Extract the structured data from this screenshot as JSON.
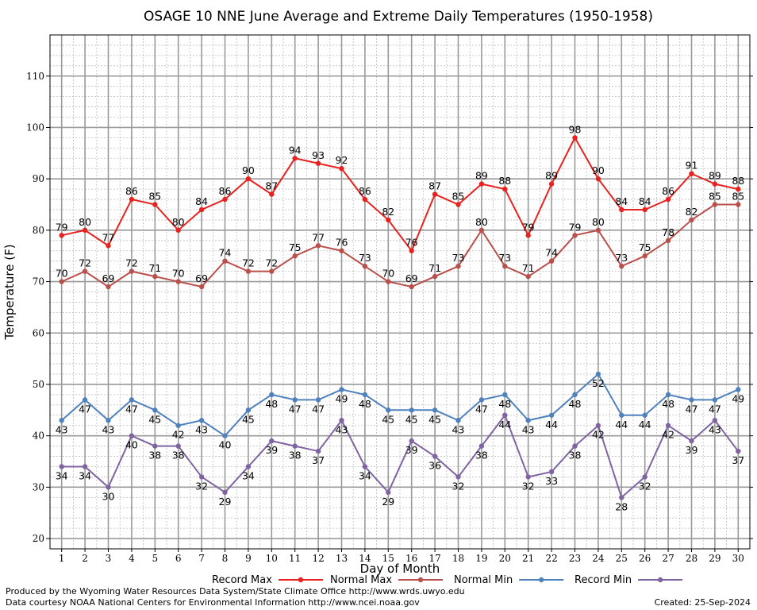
{
  "chart_data": {
    "type": "line",
    "title": "OSAGE 10 NNE June Average and Extreme Daily Temperatures (1950-1958)",
    "xlabel": "Day of Month",
    "ylabel": "Temperature (F)",
    "x": [
      1,
      2,
      3,
      4,
      5,
      6,
      7,
      8,
      9,
      10,
      11,
      12,
      13,
      14,
      15,
      16,
      17,
      18,
      19,
      20,
      21,
      22,
      23,
      24,
      25,
      26,
      27,
      28,
      29,
      30
    ],
    "ylim": [
      18,
      118
    ],
    "yticks": [
      20,
      30,
      40,
      50,
      60,
      70,
      80,
      90,
      100,
      110
    ],
    "grid": true,
    "legend_position": "bottom",
    "series": [
      {
        "name": "Record Max",
        "color": "#e8231f",
        "values": [
          79,
          80,
          77,
          86,
          85,
          80,
          84,
          86,
          90,
          87,
          94,
          93,
          92,
          86,
          82,
          76,
          87,
          85,
          89,
          88,
          79,
          89,
          98,
          90,
          84,
          84,
          86,
          91,
          89,
          88
        ]
      },
      {
        "name": "Normal Max",
        "color": "#b9504c",
        "values": [
          70,
          72,
          69,
          72,
          71,
          70,
          69,
          74,
          72,
          72,
          75,
          77,
          76,
          73,
          70,
          69,
          71,
          73,
          80,
          73,
          71,
          74,
          79,
          80,
          73,
          75,
          78,
          82,
          85,
          85
        ]
      },
      {
        "name": "Normal Min",
        "color": "#4f81bd",
        "values": [
          43,
          47,
          43,
          47,
          45,
          42,
          43,
          40,
          45,
          48,
          47,
          47,
          49,
          48,
          45,
          45,
          45,
          43,
          47,
          48,
          43,
          44,
          48,
          52,
          44,
          44,
          48,
          47,
          47,
          49
        ]
      },
      {
        "name": "Record Min",
        "color": "#8064a2",
        "values": [
          34,
          34,
          30,
          40,
          38,
          38,
          32,
          29,
          34,
          39,
          38,
          37,
          43,
          34,
          29,
          39,
          36,
          32,
          38,
          44,
          32,
          33,
          38,
          42,
          28,
          32,
          42,
          39,
          43,
          37
        ]
      }
    ]
  },
  "footer": {
    "produced_by": "Produced by the Wyoming Water Resources Data System/State Climate Office http://www.wrds.uwyo.edu",
    "data_courtesy": "Data courtesy NOAA National Centers for Environmental Information http://www.ncei.noaa.gov",
    "created": "Created:  25-Sep-2024"
  }
}
